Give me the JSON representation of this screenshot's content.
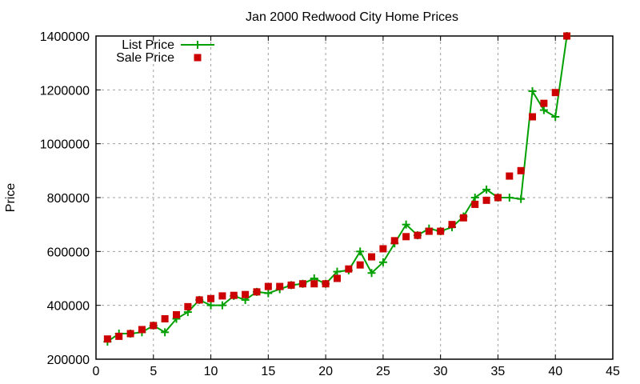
{
  "chart_data": {
    "type": "line",
    "title": "Jan 2000 Redwood City Home Prices",
    "xlabel": "",
    "ylabel": "Price",
    "xlim": [
      0,
      45
    ],
    "ylim": [
      200000,
      1400000
    ],
    "xticks": [
      0,
      5,
      10,
      15,
      20,
      25,
      30,
      35,
      40,
      45
    ],
    "yticks": [
      200000,
      400000,
      600000,
      800000,
      1000000,
      1200000,
      1400000
    ],
    "grid": true,
    "legend_placement": "top-left",
    "x": [
      1,
      2,
      3,
      4,
      5,
      6,
      7,
      8,
      9,
      10,
      11,
      12,
      13,
      14,
      15,
      16,
      17,
      18,
      19,
      20,
      21,
      22,
      23,
      24,
      25,
      26,
      27,
      28,
      29,
      30,
      31,
      32,
      33,
      34,
      35,
      36,
      37,
      38,
      39,
      40,
      41
    ],
    "series": [
      {
        "name": "List Price",
        "style": "linespoints",
        "marker": "plus",
        "color": "#00a000",
        "values": [
          265000,
          295000,
          295000,
          300000,
          325000,
          300000,
          350000,
          375000,
          420000,
          400000,
          400000,
          435000,
          420000,
          450000,
          445000,
          460000,
          475000,
          480000,
          500000,
          480000,
          525000,
          530000,
          600000,
          520000,
          560000,
          630000,
          700000,
          660000,
          685000,
          675000,
          690000,
          730000,
          800000,
          830000,
          800000,
          800000,
          795000,
          1195000,
          1125000,
          1100000,
          1400000
        ]
      },
      {
        "name": "Sale Price",
        "style": "points",
        "marker": "square",
        "color": "#cc0000",
        "values": [
          275000,
          285000,
          295000,
          310000,
          325000,
          350000,
          365000,
          395000,
          420000,
          425000,
          435000,
          437000,
          440000,
          450000,
          470000,
          470000,
          475000,
          480000,
          480000,
          480000,
          500000,
          535000,
          550000,
          580000,
          610000,
          640000,
          655000,
          660000,
          675000,
          675000,
          700000,
          725000,
          775000,
          790000,
          800000,
          880000,
          900000,
          1100000,
          1150000,
          1190000,
          1400000
        ]
      }
    ]
  }
}
